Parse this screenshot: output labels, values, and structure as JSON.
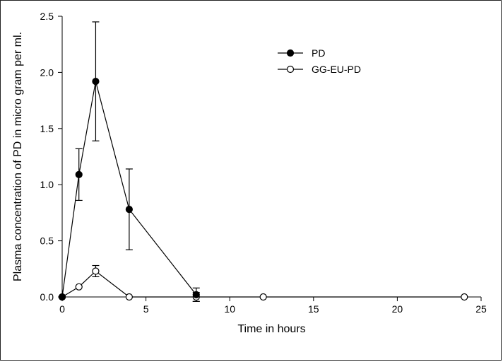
{
  "chart_data": {
    "type": "line",
    "xlabel": "Time in hours",
    "ylabel": "Plasma concentration of PD in micro gram per ml.",
    "xlim": [
      0,
      25
    ],
    "ylim": [
      0,
      2.5
    ],
    "xticks": [
      "0",
      "5",
      "10",
      "15",
      "20",
      "25"
    ],
    "yticks": [
      "0.0",
      "0.5",
      "1.0",
      "1.5",
      "2.0",
      "2.5"
    ],
    "grid": false,
    "legend_position": "top-right",
    "series": [
      {
        "name": "PD",
        "marker": "filled-circle",
        "color": "#000000",
        "x": [
          0,
          1,
          2,
          4,
          8
        ],
        "y": [
          0,
          1.09,
          1.92,
          0.78,
          0.02
        ],
        "error": [
          0,
          0.23,
          0.53,
          0.36,
          0.06
        ]
      },
      {
        "name": "GG-EU-PD",
        "marker": "open-circle",
        "color": "#000000",
        "x": [
          0,
          1,
          2,
          4,
          8,
          12,
          24
        ],
        "y": [
          0,
          0.09,
          0.23,
          0.0,
          0.0,
          0.0,
          0.0
        ],
        "error": [
          0,
          0,
          0.05,
          0,
          0.04,
          0,
          0
        ]
      }
    ]
  }
}
